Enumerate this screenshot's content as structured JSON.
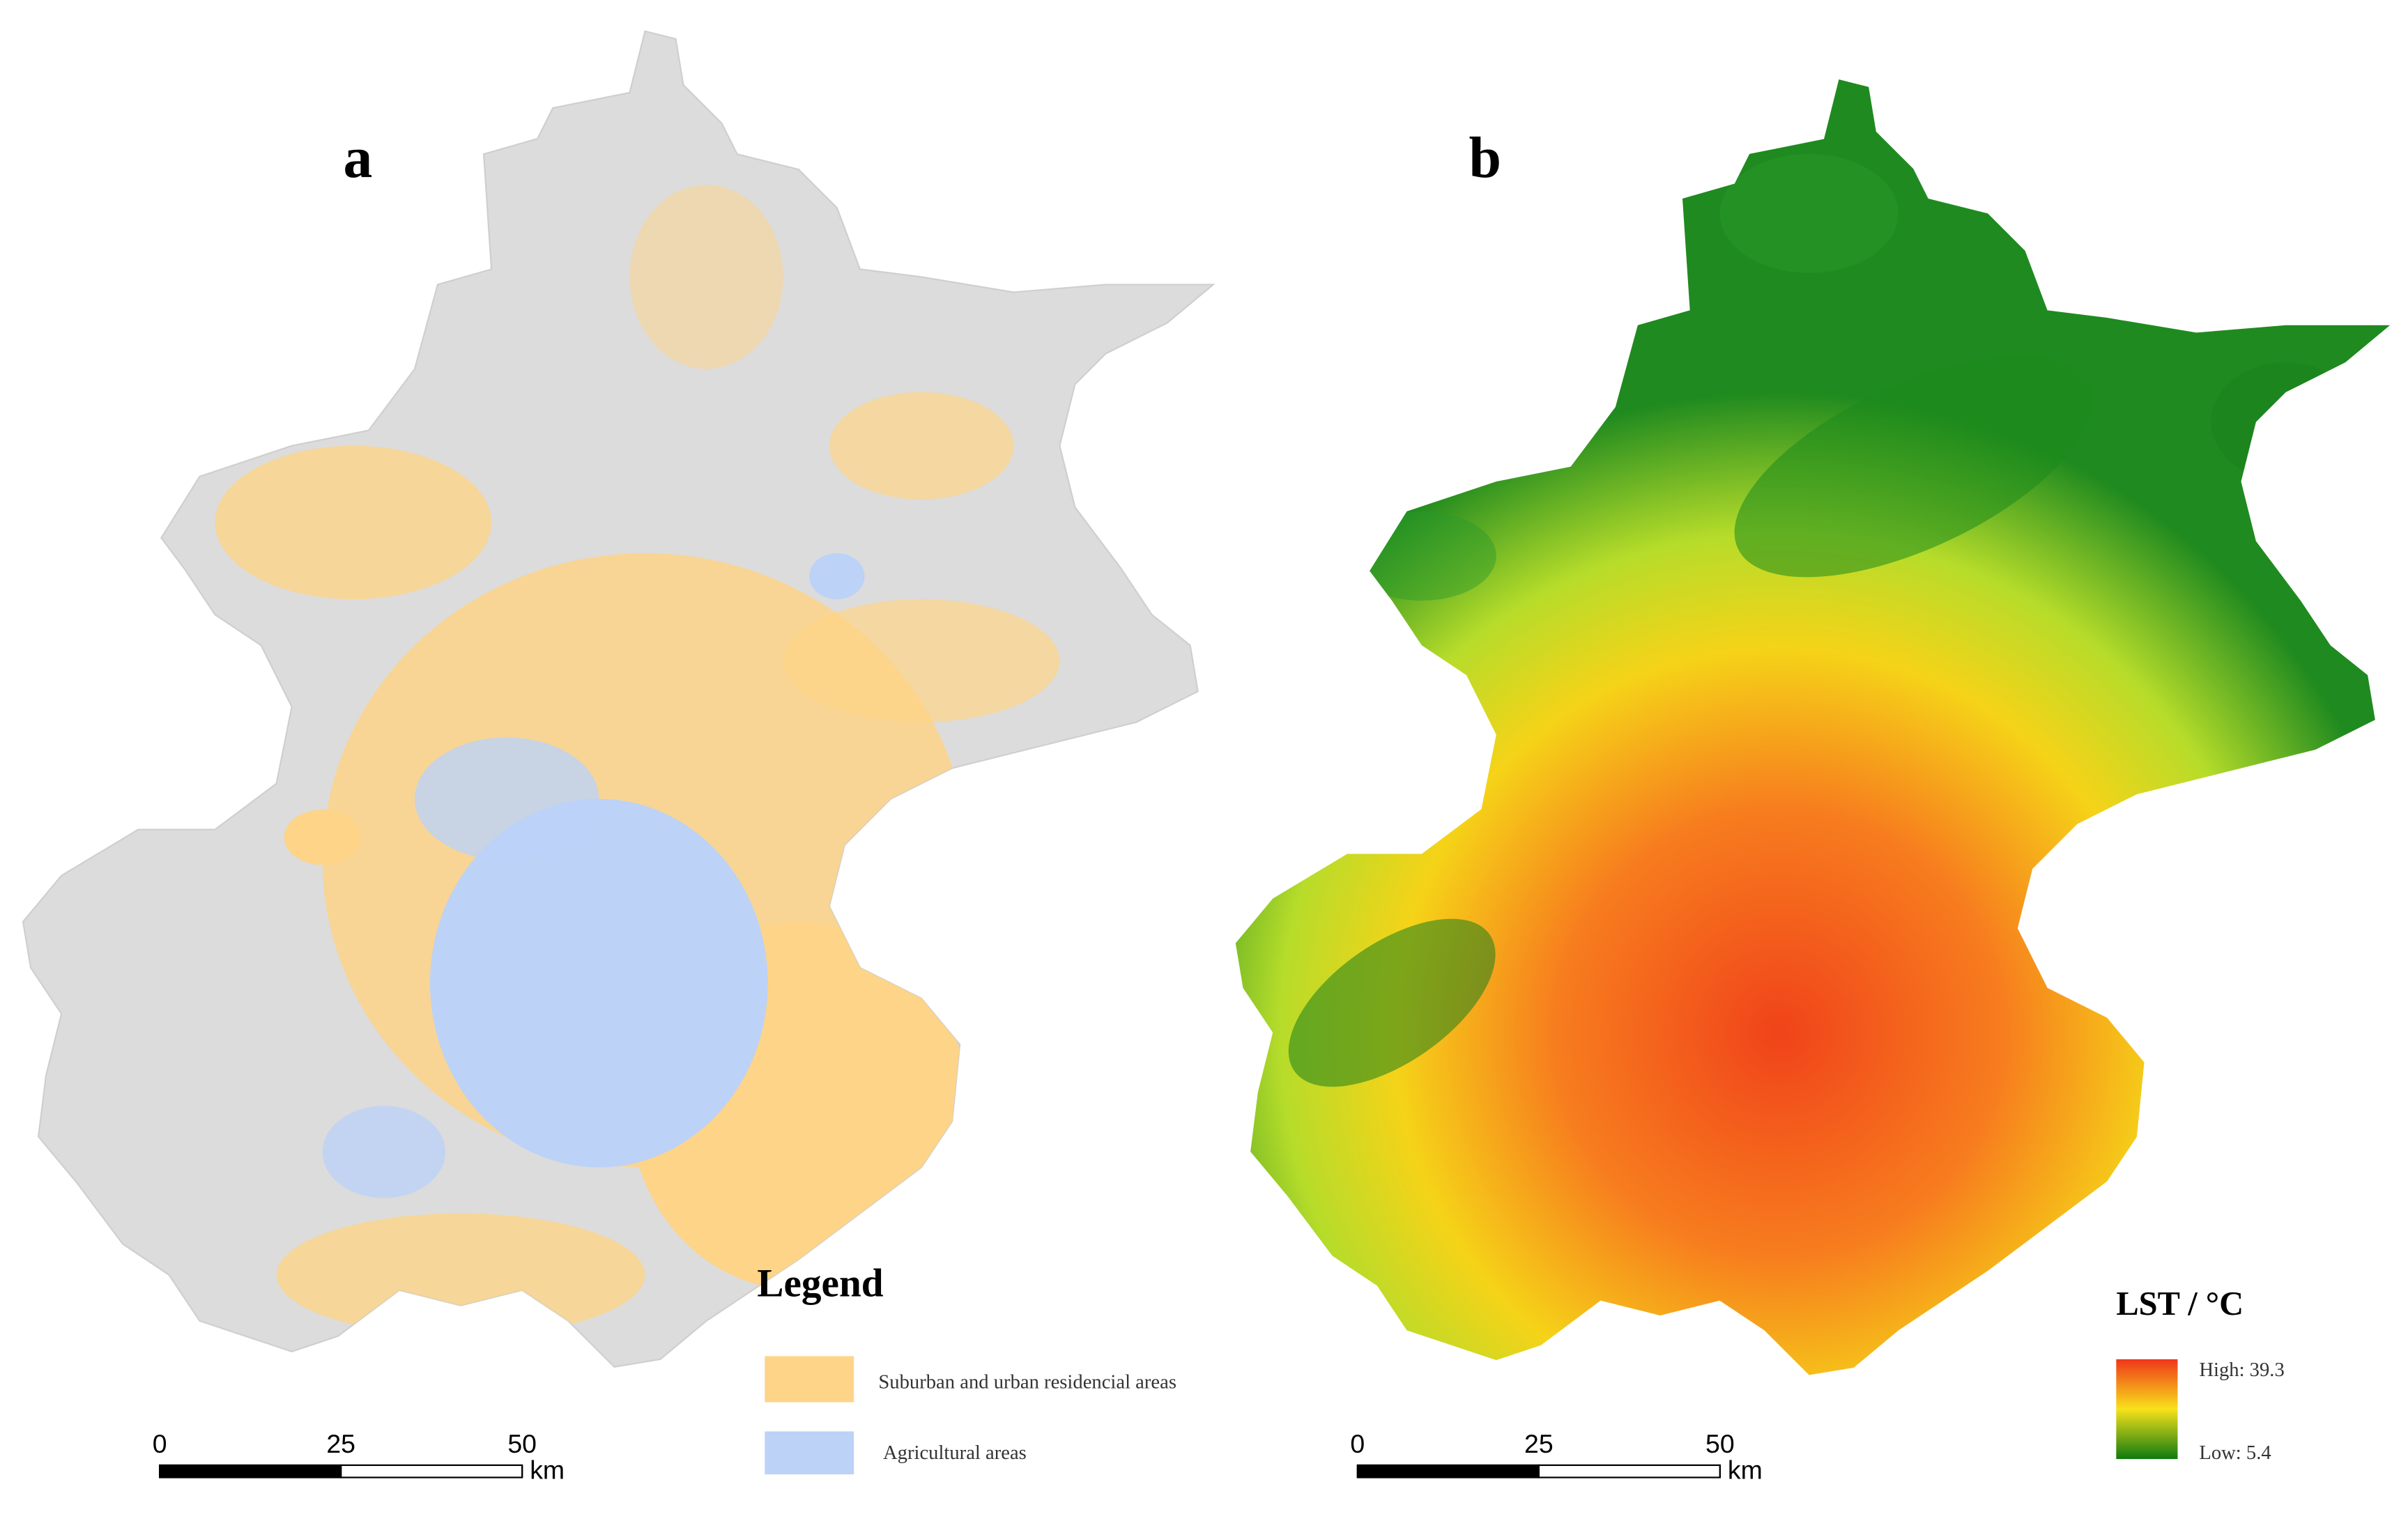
{
  "panels": [
    {
      "label": "a",
      "legend": {
        "title": "Legend",
        "items": [
          "Suburban and urban residencial areas",
          "Agricultural areas"
        ]
      },
      "scale_bar": {
        "ticks": [
          0,
          25,
          50
        ],
        "unit": "km"
      }
    },
    {
      "label": "b",
      "legend": {
        "title": "LST / °C",
        "high": "High: 39.3",
        "low": "Low: 5.4"
      },
      "scale_bar": {
        "ticks": [
          0,
          25,
          50
        ],
        "unit": "km"
      }
    }
  ]
}
